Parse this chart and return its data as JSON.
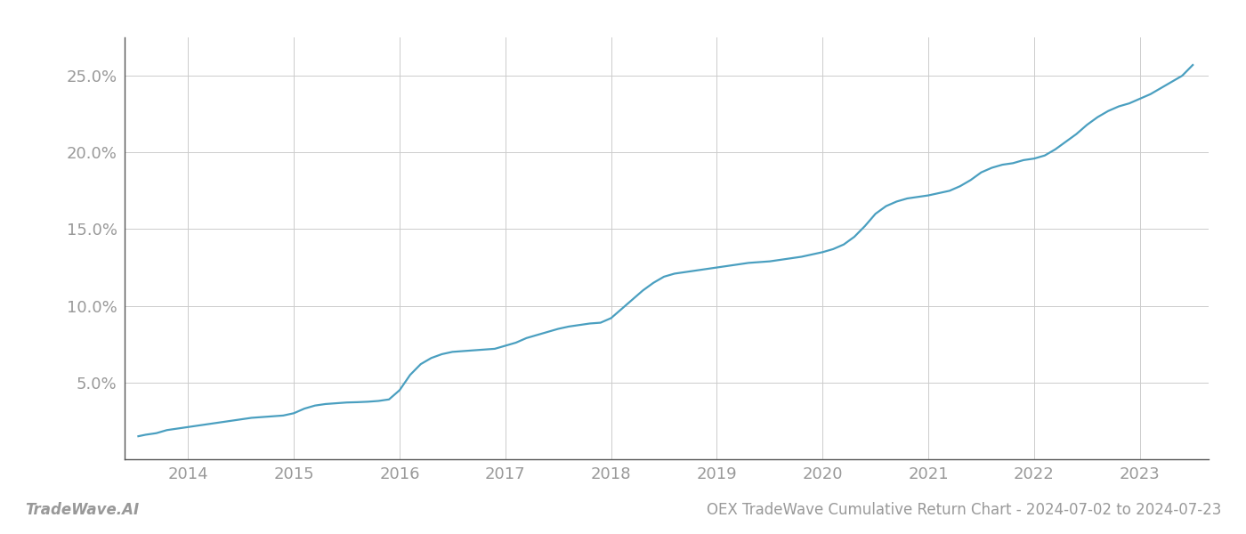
{
  "title_right": "OEX TradeWave Cumulative Return Chart - 2024-07-02 to 2024-07-23",
  "title_left": "TradeWave.AI",
  "line_color": "#4A9FC0",
  "background_color": "#ffffff",
  "grid_color": "#cccccc",
  "x_years": [
    2014,
    2015,
    2016,
    2017,
    2018,
    2019,
    2020,
    2021,
    2022,
    2023
  ],
  "x_data": [
    2013.53,
    2013.6,
    2013.7,
    2013.8,
    2013.9,
    2014.0,
    2014.1,
    2014.2,
    2014.3,
    2014.4,
    2014.5,
    2014.6,
    2014.7,
    2014.8,
    2014.9,
    2015.0,
    2015.1,
    2015.2,
    2015.3,
    2015.4,
    2015.5,
    2015.6,
    2015.7,
    2015.8,
    2015.9,
    2016.0,
    2016.1,
    2016.2,
    2016.3,
    2016.4,
    2016.5,
    2016.6,
    2016.7,
    2016.8,
    2016.9,
    2017.0,
    2017.1,
    2017.2,
    2017.3,
    2017.4,
    2017.5,
    2017.6,
    2017.7,
    2017.8,
    2017.9,
    2018.0,
    2018.1,
    2018.2,
    2018.3,
    2018.4,
    2018.5,
    2018.6,
    2018.7,
    2018.8,
    2018.9,
    2019.0,
    2019.1,
    2019.2,
    2019.3,
    2019.4,
    2019.5,
    2019.6,
    2019.7,
    2019.8,
    2019.9,
    2020.0,
    2020.1,
    2020.2,
    2020.3,
    2020.4,
    2020.5,
    2020.6,
    2020.7,
    2020.8,
    2020.9,
    2021.0,
    2021.1,
    2021.2,
    2021.3,
    2021.4,
    2021.5,
    2021.6,
    2021.7,
    2021.8,
    2021.9,
    2022.0,
    2022.1,
    2022.2,
    2022.3,
    2022.4,
    2022.5,
    2022.6,
    2022.7,
    2022.8,
    2022.9,
    2023.0,
    2023.1,
    2023.2,
    2023.3,
    2023.4,
    2023.5
  ],
  "y_data": [
    1.5,
    1.6,
    1.7,
    1.9,
    2.0,
    2.1,
    2.2,
    2.3,
    2.4,
    2.5,
    2.6,
    2.7,
    2.75,
    2.8,
    2.85,
    3.0,
    3.3,
    3.5,
    3.6,
    3.65,
    3.7,
    3.72,
    3.75,
    3.8,
    3.9,
    4.5,
    5.5,
    6.2,
    6.6,
    6.85,
    7.0,
    7.05,
    7.1,
    7.15,
    7.2,
    7.4,
    7.6,
    7.9,
    8.1,
    8.3,
    8.5,
    8.65,
    8.75,
    8.85,
    8.9,
    9.2,
    9.8,
    10.4,
    11.0,
    11.5,
    11.9,
    12.1,
    12.2,
    12.3,
    12.4,
    12.5,
    12.6,
    12.7,
    12.8,
    12.85,
    12.9,
    13.0,
    13.1,
    13.2,
    13.35,
    13.5,
    13.7,
    14.0,
    14.5,
    15.2,
    16.0,
    16.5,
    16.8,
    17.0,
    17.1,
    17.2,
    17.35,
    17.5,
    17.8,
    18.2,
    18.7,
    19.0,
    19.2,
    19.3,
    19.5,
    19.6,
    19.8,
    20.2,
    20.7,
    21.2,
    21.8,
    22.3,
    22.7,
    23.0,
    23.2,
    23.5,
    23.8,
    24.2,
    24.6,
    25.0,
    25.7
  ],
  "xlim": [
    2013.4,
    2023.65
  ],
  "ylim": [
    0.0,
    27.5
  ],
  "yticks": [
    5.0,
    10.0,
    15.0,
    20.0,
    25.0
  ],
  "ytick_labels": [
    "5.0%",
    "10.0%",
    "15.0%",
    "20.0%",
    "25.0%"
  ],
  "line_width": 1.6,
  "tick_label_color": "#999999",
  "tick_fontsize": 13,
  "footer_fontsize": 12,
  "left_spine_color": "#555555",
  "bottom_spine_color": "#555555"
}
